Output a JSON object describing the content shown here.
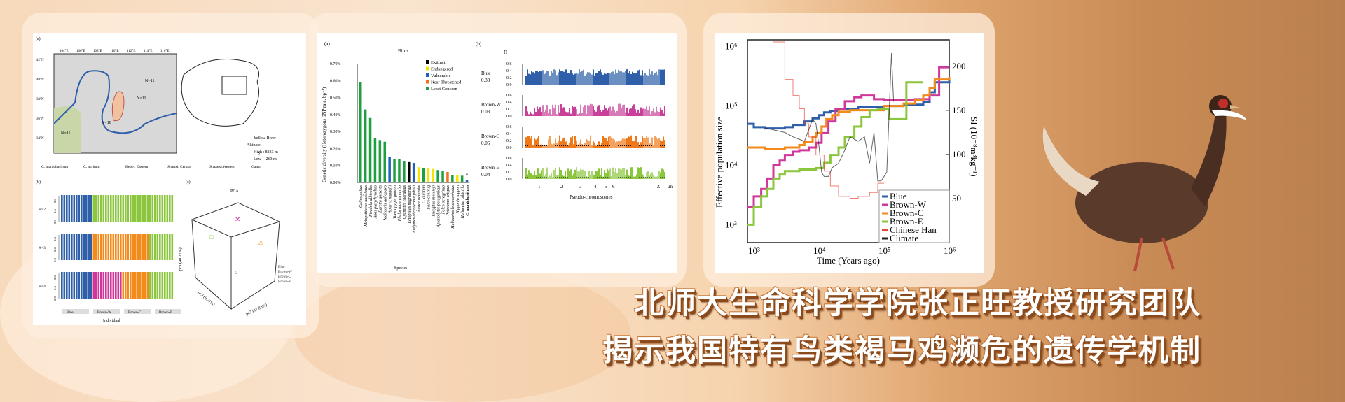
{
  "headline": {
    "line1": "北师大生命科学学院张正旺教授研究团队",
    "line2": "揭示我国特有鸟类褐马鸡濒危的遗传学机制"
  },
  "colors": {
    "blue": "#2e5fa8",
    "brown_w": "#d0379a",
    "brown_c": "#f28a1c",
    "brown_e": "#8cc63f",
    "han": "#e8463c",
    "climate": "#222222",
    "bg": "#f6d3ad"
  },
  "figure1": {
    "panel_a": "(a)",
    "panel_b": "(b)",
    "panel_c": "(c)",
    "lon_ticks": [
      "104°E",
      "106°E",
      "108°E",
      "110°E",
      "112°E",
      "114°E",
      "116°E"
    ],
    "lat_ticks": [
      "42°N",
      "40°N",
      "38°N",
      "36°N",
      "34°N"
    ],
    "samples": [
      "N=11",
      "N=11",
      "N=18",
      "N=11"
    ],
    "map_legend": {
      "river": "Yellow River",
      "altitude": "Altitude",
      "high": "High : 8233 m",
      "low": "Low : -263 m"
    },
    "legend": [
      "C. mantchuricum",
      "C. auritum",
      "Hebei, Eastern",
      "Shanxi, Central",
      "Shaanxi,Western",
      "Gansu"
    ],
    "k_labels": [
      "K=2",
      "K=3",
      "K=4"
    ],
    "k_ticks": [
      "0.0",
      "0.4",
      "0.8"
    ],
    "groups": [
      "Blue",
      "Brown-W",
      "Brown-C",
      "Brown-E"
    ],
    "individual_label": "Individual",
    "pca": {
      "title": "PCA",
      "pc1": "pc1 (40.27%)",
      "pc2": "pc2 (17.83%)",
      "pc3": "pc3 (8.71%)",
      "legend": [
        "Blue",
        "Brown-W",
        "Brown-C",
        "Brown-E"
      ]
    }
  },
  "figure2": {
    "panel_a": "(a)",
    "panel_b": "(b)",
    "chart_data": {
      "type": "bar",
      "title": "Birds",
      "xlabel": "Species",
      "ylabel": "Genetic diversity (Heterozygous SNP rate, bp⁻¹)",
      "ylim": [
        0,
        0.7
      ],
      "yticks": [
        "0.00%",
        "0.10%",
        "0.20%",
        "0.30%",
        "0.40%",
        "0.50%",
        "0.60%",
        "0.70%"
      ],
      "legend": [
        {
          "name": "Exitinct",
          "color": "#000000"
        },
        {
          "name": "Endangered",
          "color": "#f2e600"
        },
        {
          "name": "Vulnerable",
          "color": "#1f5fbf"
        },
        {
          "name": "Near Threatened",
          "color": "#f07020"
        },
        {
          "name": "Least Concern",
          "color": "#1fa040"
        }
      ],
      "categories": [
        "Gallus gallus",
        "Melopsittacus undulatus",
        "Ficedula albicollis",
        "Anas platyrhynchos",
        "Egretta garzetta",
        "Meleagris gallopavo",
        "Apteryx mantelli",
        "Taeniopygia guttata",
        "Phalacrocorax carbo",
        "Cyanistes caeruleus",
        "Ectopistes migratorius",
        "Eudyptes chrysocome filholi",
        "Nestor notabilis",
        "C. auritum",
        "Falco cherrug",
        "Eudyptes moseleyi",
        "Aptenodytes patagonicus",
        "Falco peregrinus",
        "Pelecanus crispus",
        "Haliaeetus leucocephalus",
        "Nipponia nippon",
        "Haliaeetus albicilla",
        "C. mantchuricum"
      ],
      "values": [
        0.59,
        0.43,
        0.38,
        0.26,
        0.25,
        0.24,
        0.15,
        0.14,
        0.14,
        0.125,
        0.12,
        0.115,
        0.09,
        0.083,
        0.082,
        0.08,
        0.073,
        0.07,
        0.062,
        0.045,
        0.043,
        0.04,
        0.015
      ],
      "status": [
        4,
        4,
        4,
        4,
        4,
        4,
        2,
        4,
        4,
        4,
        0,
        2,
        1,
        4,
        1,
        1,
        4,
        4,
        3,
        4,
        1,
        4,
        2
      ],
      "annotation": "*"
    },
    "pi": {
      "symbol": "Π",
      "yticks": [
        "0.0",
        "0.2",
        "0.4",
        "0.6"
      ],
      "xlabel": "Pseudo-chromosomes",
      "chroms": [
        "1",
        "2",
        "3",
        "4",
        "5",
        "6",
        "Z",
        "un"
      ],
      "tracks": [
        {
          "name": "Blue",
          "value": "0.33",
          "color": "#2e5fa8"
        },
        {
          "name": "Brown-W",
          "value": "0.03",
          "color": "#c8409a"
        },
        {
          "name": "Brown-C",
          "value": "0.05",
          "color": "#f07a1a"
        },
        {
          "name": "Brown-E",
          "value": "0.04",
          "color": "#8cc63f"
        }
      ]
    }
  },
  "figure3": {
    "chart_data": {
      "type": "line",
      "xlabel": "Time (Years ago)",
      "ylabel": "Effective population size",
      "y2label": "SI (10⁻⁸m³kg⁻¹)",
      "xscale": "log",
      "yscale": "log",
      "xlim": [
        800,
        1000000
      ],
      "ylim": [
        500,
        1300000
      ],
      "y2lim": [
        0,
        230
      ],
      "xticks": [
        "10³",
        "10⁴",
        "10⁵",
        "10⁶"
      ],
      "yticks": [
        "10³",
        "10⁴",
        "10⁵",
        "10⁶"
      ],
      "y2ticks": [
        "50",
        "100",
        "150",
        "200"
      ],
      "legend_position": "bottom-right",
      "series": [
        {
          "name": "Blue",
          "color": "#2e5fa8",
          "x": [
            800,
            1000,
            1500,
            3000,
            4000,
            6000,
            8000,
            10000,
            12000,
            15000,
            20000,
            40000,
            100000,
            200000,
            400000,
            500000,
            600000,
            1000000
          ],
          "y": [
            50000,
            44000,
            42000,
            44000,
            48000,
            55000,
            62000,
            70000,
            78000,
            83000,
            88000,
            95000,
            100000,
            105000,
            115000,
            170000,
            250000,
            300000
          ]
        },
        {
          "name": "Brown-W",
          "color": "#d0379a",
          "x": [
            800,
            1000,
            1300,
            1600,
            2000,
            2500,
            3000,
            4000,
            5000,
            7000,
            9000,
            11000,
            14000,
            18000,
            25000,
            35000,
            45000,
            70000,
            100000,
            200000,
            300000,
            500000,
            700000,
            1000000
          ],
          "y": [
            2000,
            3000,
            4000,
            6000,
            10000,
            12000,
            15000,
            17000,
            18000,
            20000,
            24000,
            35000,
            55000,
            90000,
            120000,
            140000,
            150000,
            130000,
            125000,
            125000,
            130000,
            150000,
            450000,
            450000
          ]
        },
        {
          "name": "Brown-C",
          "color": "#f28a1c",
          "x": [
            800,
            1000,
            1500,
            3000,
            5000,
            6000,
            8000,
            9000,
            11000,
            13000,
            16000,
            20000,
            30000,
            100000,
            200000,
            300000,
            400000,
            500000,
            600000,
            1000000
          ],
          "y": [
            20000,
            20000,
            19000,
            20000,
            22000,
            25000,
            30000,
            35000,
            45000,
            60000,
            70000,
            80000,
            85000,
            100000,
            110000,
            125000,
            150000,
            200000,
            280000,
            310000
          ]
        },
        {
          "name": "Brown-E",
          "color": "#8cc63f",
          "x": [
            800,
            1000,
            1300,
            1600,
            2000,
            2500,
            3000,
            5000,
            9000,
            12000,
            15000,
            20000,
            25000,
            35000,
            45000,
            60000,
            80000,
            120000,
            150000,
            220000,
            400000
          ],
          "y": [
            1000,
            2000,
            3000,
            4000,
            6000,
            7000,
            8000,
            8500,
            9000,
            11000,
            15000,
            20000,
            30000,
            45000,
            65000,
            85000,
            90000,
            60000,
            60000,
            250000,
            250000
          ]
        },
        {
          "name": "Chinese Han",
          "color": "#e8463c",
          "x": [
            2000,
            3000,
            4000,
            5000,
            6000,
            7000,
            9000,
            12000,
            15000,
            20000,
            30000,
            40000,
            60000,
            80000,
            100000
          ],
          "y": [
            1200000,
            280000,
            150000,
            90000,
            50000,
            30000,
            15000,
            8000,
            4500,
            3000,
            2800,
            3000,
            3500,
            5000,
            5000
          ]
        },
        {
          "name": "Climate",
          "color": "#222222",
          "x": [
            1500,
            3000,
            4000,
            6000,
            8000,
            9000,
            10000,
            11000,
            12000,
            14000,
            16000,
            20000,
            25000,
            30000,
            40000,
            50000,
            60000,
            70000,
            80000,
            90000,
            100000,
            110000,
            120000,
            130000,
            140000
          ],
          "y2": [
            130,
            125,
            120,
            115,
            140,
            135,
            110,
            80,
            75,
            75,
            85,
            90,
            105,
            120,
            115,
            120,
            90,
            125,
            70,
            70,
            75,
            80,
            150,
            215,
            160
          ]
        }
      ]
    }
  }
}
